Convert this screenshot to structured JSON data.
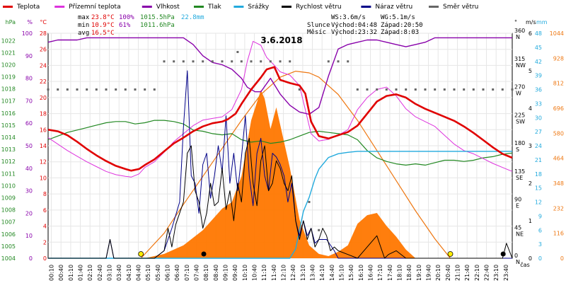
{
  "chart_data": {
    "type": "line",
    "title": "3.6.2018",
    "xlabel": "čas",
    "x_ticks": [
      "00:10",
      "00:40",
      "01:10",
      "01:40",
      "02:10",
      "02:40",
      "03:10",
      "03:40",
      "04:10",
      "04:40",
      "05:10",
      "05:40",
      "06:10",
      "06:40",
      "07:10",
      "07:40",
      "08:10",
      "08:40",
      "09:10",
      "09:40",
      "10:10",
      "10:40",
      "11:10",
      "11:40",
      "12:10",
      "12:40",
      "13:10",
      "13:40",
      "14:10",
      "14:40",
      "15:10",
      "15:40",
      "16:10",
      "16:40",
      "17:10",
      "17:40",
      "18:10",
      "18:40",
      "19:10",
      "19:40",
      "20:10",
      "20:40",
      "21:10",
      "21:40",
      "22:10",
      "22:40",
      "23:10",
      "23:40"
    ],
    "legend": [
      {
        "name": "Teplota",
        "color": "#e00000"
      },
      {
        "name": "Přízemní teplota",
        "color": "#dd33dd"
      },
      {
        "name": "Vlhkost",
        "color": "#8800aa"
      },
      {
        "name": "Tlak",
        "color": "#228822"
      },
      {
        "name": "Srážky",
        "color": "#22aadd"
      },
      {
        "name": "Rychlost větru",
        "color": "#000000"
      },
      {
        "name": "Náraz větru",
        "color": "#000088"
      },
      {
        "name": "Směr větru",
        "color": "#666666"
      }
    ],
    "stats": {
      "max_label": "max",
      "max_temp": "23.8°C",
      "max_hum": "100%",
      "max_press": "1015.5hPa",
      "max_rain": "22.8mm",
      "min_label": "min",
      "min_temp": "10.9°C",
      "min_hum": "61%",
      "min_press": "1011.6hPa",
      "avg_label": "avg",
      "avg_temp": "16.5°C"
    },
    "wind": {
      "ws": "WS:3.6m/s",
      "wg": "WG:5.1m/s"
    },
    "sun": {
      "label": "Slunce",
      "rise": "Východ:04:48",
      "set": "Západ:20:50"
    },
    "moon": {
      "label": "Měsíc",
      "rise": "Východ:23:32",
      "set": "Západ:8:03"
    },
    "axes": {
      "pressure": {
        "unit": "hPa",
        "ticks": [
          "1004",
          "1005",
          "1006",
          "1007",
          "1008",
          "1009",
          "1010",
          "1011",
          "1012",
          "1013",
          "1014",
          "1015",
          "1016",
          "1017",
          "1018",
          "1019",
          "1020",
          "1021",
          "1022"
        ],
        "range": [
          1004,
          1022.6
        ]
      },
      "humidity": {
        "unit": "%",
        "ticks": [
          "0",
          "10",
          "20",
          "30",
          "40",
          "50",
          "60",
          "70",
          "80",
          "90",
          "100"
        ],
        "range": [
          0,
          100
        ]
      },
      "temperature": {
        "unit": "°C",
        "ticks": [
          "0",
          "2",
          "4",
          "6",
          "8",
          "10",
          "12",
          "14",
          "16",
          "18",
          "20",
          "22",
          "24",
          "26",
          "28"
        ],
        "range": [
          0,
          28
        ]
      },
      "direction": {
        "unit": "°",
        "ticks": [
          {
            "deg": "0",
            "dir": "N"
          },
          {
            "deg": "45",
            "dir": "NE"
          },
          {
            "deg": "90",
            "dir": "E"
          },
          {
            "deg": "135",
            "dir": "SE"
          },
          {
            "deg": "180",
            "dir": "S"
          },
          {
            "deg": "225",
            "dir": "SW"
          },
          {
            "deg": "270",
            "dir": "W"
          },
          {
            "deg": "315",
            "dir": "NW"
          },
          {
            "deg": "360",
            "dir": "N"
          }
        ],
        "range": [
          0,
          360
        ]
      },
      "wind_speed": {
        "unit": "m/s",
        "ticks": [
          "0",
          "1",
          "2",
          "3",
          "4",
          "5",
          "6"
        ],
        "range": [
          0,
          6
        ]
      },
      "rain": {
        "unit": "mm",
        "ticks": [
          "0",
          "3",
          "6",
          "9",
          "12",
          "15",
          "18",
          "21",
          "24",
          "27",
          "30",
          "33",
          "36",
          "39",
          "42",
          "45",
          "48"
        ],
        "range": [
          0,
          48
        ]
      },
      "solar": {
        "ticks": [
          "0",
          "116",
          "232",
          "348",
          "464",
          "580",
          "696",
          "812",
          "928",
          "1044"
        ],
        "range": [
          0,
          1044
        ]
      }
    },
    "x_range_hours": [
      0,
      24
    ],
    "series": [
      {
        "name": "Teplota",
        "x": [
          0,
          0.5,
          1,
          1.5,
          2,
          2.5,
          3,
          3.5,
          4,
          4.3,
          4.7,
          5,
          5.5,
          6,
          6.5,
          7,
          7.5,
          8,
          8.5,
          9,
          9.3,
          9.7,
          10,
          10.5,
          11,
          11.3,
          11.7,
          12,
          12.5,
          13,
          13.3,
          13.6,
          14,
          14.5,
          15,
          15.5,
          16,
          16.5,
          17,
          17.5,
          18,
          18.5,
          19,
          19.5,
          20,
          20.5,
          21,
          21.5,
          22,
          22.5,
          23,
          23.5,
          24
        ],
        "values": [
          16.0,
          15.8,
          15.3,
          14.5,
          13.6,
          12.8,
          12.1,
          11.5,
          11.1,
          10.9,
          11.1,
          11.6,
          12.3,
          13.3,
          14.3,
          15.0,
          15.8,
          16.4,
          16.8,
          17.0,
          17.3,
          18.0,
          19.2,
          21.0,
          22.5,
          23.5,
          23.8,
          22.2,
          21.8,
          21.5,
          20.5,
          17.0,
          15.2,
          14.9,
          15.3,
          15.7,
          16.5,
          18.0,
          19.5,
          20.2,
          20.4,
          20.0,
          19.2,
          18.6,
          18.1,
          17.6,
          17.1,
          16.4,
          15.6,
          14.7,
          13.8,
          13.0,
          12.5
        ]
      },
      {
        "name": "Přízemní teplota",
        "x": [
          0,
          0.5,
          1,
          1.5,
          2,
          2.5,
          3,
          3.5,
          4,
          4.3,
          4.7,
          5,
          5.5,
          6,
          6.5,
          7,
          7.5,
          8,
          8.5,
          9,
          9.5,
          10,
          10.3,
          10.6,
          11,
          11.3,
          11.7,
          12,
          12.5,
          13,
          13.3,
          13.6,
          14,
          14.5,
          15,
          15.5,
          16,
          16.5,
          17,
          17.5,
          18,
          18.5,
          19,
          19.5,
          20,
          20.5,
          21,
          21.5,
          22,
          22.5,
          23,
          23.5,
          24
        ],
        "values": [
          15.0,
          14.2,
          13.4,
          12.7,
          12.0,
          11.4,
          10.8,
          10.4,
          10.2,
          10.1,
          10.5,
          11.3,
          12.0,
          13.2,
          14.5,
          15.5,
          16.5,
          17.2,
          17.4,
          17.6,
          18.5,
          21.0,
          24.5,
          27.0,
          26.5,
          25.0,
          24.0,
          23.2,
          22.8,
          21.5,
          18.5,
          15.5,
          14.6,
          14.8,
          15.3,
          16.0,
          18.5,
          20.0,
          21.0,
          21.3,
          20.2,
          18.6,
          17.6,
          17.0,
          16.4,
          15.3,
          14.2,
          13.4,
          13.0,
          12.4,
          11.8,
          11.3,
          10.8
        ]
      },
      {
        "name": "Vlhkost",
        "x": [
          0,
          0.5,
          1,
          1.5,
          2,
          2.5,
          3,
          3.5,
          4,
          4.5,
          5,
          5.5,
          6,
          6.5,
          7,
          7.5,
          8,
          8.5,
          9,
          9.5,
          10,
          10.3,
          10.7,
          11,
          11.5,
          12,
          12.5,
          13,
          13.5,
          14,
          14.5,
          15,
          15.5,
          16,
          16.5,
          17,
          17.5,
          18,
          18.5,
          19,
          19.5,
          20,
          20.5,
          21,
          21.5,
          22,
          22.5,
          23,
          23.5,
          24
        ],
        "values": [
          96,
          97,
          97,
          97,
          98,
          98,
          98,
          98,
          98,
          98,
          98,
          98,
          98,
          98,
          98,
          95,
          90,
          87,
          86,
          84,
          80,
          76,
          74,
          74,
          80,
          73,
          68,
          65,
          64,
          67,
          81,
          93,
          95,
          96,
          97,
          97,
          96,
          95,
          94,
          95,
          96,
          98,
          98,
          98,
          98,
          98,
          98,
          98,
          98,
          98
        ]
      },
      {
        "name": "Tlak",
        "x": [
          0,
          0.5,
          1,
          1.5,
          2,
          2.5,
          3,
          3.5,
          4,
          4.5,
          5,
          5.5,
          6,
          6.5,
          7,
          7.5,
          8,
          8.5,
          9,
          9.5,
          10,
          10.5,
          11,
          11.5,
          12,
          12.5,
          13,
          13.5,
          14,
          14.5,
          15,
          15.5,
          16,
          16.5,
          17,
          17.5,
          18,
          18.5,
          19,
          19.5,
          20,
          20.5,
          21,
          21.5,
          22,
          22.5,
          23,
          23.5,
          24
        ],
        "values": [
          1013.8,
          1014.1,
          1014.4,
          1014.6,
          1014.8,
          1015.0,
          1015.2,
          1015.3,
          1015.3,
          1015.1,
          1015.2,
          1015.4,
          1015.4,
          1015.3,
          1015.1,
          1014.6,
          1014.5,
          1014.3,
          1014.2,
          1014.3,
          1013.8,
          1013.6,
          1013.7,
          1013.5,
          1013.6,
          1013.8,
          1014.1,
          1014.4,
          1014.5,
          1014.4,
          1014.3,
          1014.2,
          1013.8,
          1012.9,
          1012.3,
          1012.0,
          1011.8,
          1011.7,
          1011.8,
          1011.7,
          1011.9,
          1012.1,
          1012.1,
          1012.0,
          1012.1,
          1012.3,
          1012.4,
          1012.6,
          1012.7
        ]
      },
      {
        "name": "Srážky",
        "x": [
          0,
          12.5,
          12.8,
          13.0,
          13.2,
          13.5,
          13.8,
          14.0,
          14.5,
          15.0,
          15.5,
          16.0,
          24
        ],
        "values": [
          0,
          0,
          2,
          6,
          10,
          13,
          17,
          19,
          21.5,
          22.3,
          22.6,
          22.8,
          22.8
        ]
      },
      {
        "name": "Rychlost větru",
        "x": [
          0,
          2.5,
          3.0,
          3.2,
          3.4,
          5.5,
          6.0,
          6.2,
          6.4,
          6.6,
          7.0,
          7.2,
          7.4,
          7.6,
          7.8,
          8.0,
          8.2,
          8.4,
          8.6,
          8.8,
          9.0,
          9.2,
          9.4,
          9.6,
          9.8,
          10.0,
          10.2,
          10.4,
          10.6,
          10.8,
          11.0,
          11.2,
          11.4,
          11.6,
          11.8,
          12.0,
          12.2,
          12.4,
          12.6,
          12.8,
          13.0,
          13.2,
          13.4,
          13.6,
          13.8,
          14.0,
          14.2,
          14.4,
          14.6,
          14.8,
          15.0,
          15.5,
          16.0,
          16.5,
          17.0,
          17.2,
          17.4,
          17.6,
          18.0,
          18.5,
          19,
          23.5,
          23.7,
          24
        ],
        "values": [
          0,
          0,
          0,
          0.5,
          0,
          0,
          0.2,
          0.8,
          0.3,
          0.9,
          1.5,
          2.8,
          3.0,
          1.8,
          1.5,
          0.8,
          1.2,
          2.0,
          1.4,
          1.5,
          2.4,
          1.3,
          1.8,
          1.0,
          2.0,
          1.5,
          2.8,
          3.2,
          2.0,
          1.4,
          2.6,
          3.0,
          1.8,
          2.0,
          2.6,
          2.4,
          2.0,
          1.8,
          2.2,
          1.0,
          0.5,
          1.0,
          0.5,
          0.8,
          0.3,
          0.5,
          0.8,
          0.6,
          0.2,
          0.3,
          0.2,
          0.1,
          0,
          0.3,
          0.6,
          0.3,
          0,
          0.1,
          0.2,
          0,
          0,
          0,
          0.4,
          0
        ]
      },
      {
        "name": "Náraz větru",
        "x": [
          0,
          2.5,
          3.0,
          3.2,
          3.4,
          5.5,
          6.0,
          6.4,
          6.8,
          7.0,
          7.2,
          7.4,
          7.6,
          7.8,
          8.0,
          8.2,
          8.4,
          8.6,
          8.8,
          9.0,
          9.2,
          9.4,
          9.6,
          9.8,
          10.0,
          10.2,
          10.4,
          10.6,
          10.8,
          11.0,
          11.2,
          11.4,
          11.6,
          11.8,
          12.0,
          12.2,
          12.4,
          12.6,
          12.8,
          13.0,
          13.2,
          13.4,
          13.6,
          13.8,
          14.0,
          14.4,
          14.8,
          15,
          24
        ],
        "values": [
          0,
          0,
          0,
          0.5,
          0,
          0,
          0.2,
          0.8,
          1.5,
          3.5,
          5.0,
          2.2,
          2.0,
          1.2,
          2.5,
          2.8,
          1.6,
          2.2,
          3.0,
          2.3,
          3.8,
          2.0,
          2.8,
          1.8,
          2.7,
          3.8,
          2.2,
          1.4,
          2.8,
          3.2,
          2.2,
          1.8,
          2.8,
          2.7,
          2.5,
          2.2,
          1.5,
          2.0,
          1.0,
          0.6,
          1.0,
          0.6,
          0.8,
          0.4,
          0.5,
          0.5,
          0.2,
          0,
          0
        ]
      },
      {
        "name": "Slunce",
        "x": [
          4.8,
          6,
          7,
          8,
          9,
          10,
          11,
          12,
          12.8,
          13.5,
          14,
          15,
          16,
          17,
          18,
          19,
          20,
          20.8
        ],
        "values": [
          0,
          116,
          250,
          380,
          510,
          640,
          760,
          840,
          868,
          860,
          840,
          760,
          640,
          500,
          360,
          220,
          90,
          0
        ]
      },
      {
        "name": "Záření",
        "x": [
          5,
          6,
          7,
          8,
          9,
          9.5,
          10,
          10.5,
          11,
          11.2,
          11.5,
          11.8,
          12,
          12.5,
          13,
          13.5,
          14,
          14.5,
          15,
          15.5,
          16,
          16.5,
          17,
          17.5,
          18,
          18.5,
          19
        ],
        "values": [
          0,
          20,
          60,
          130,
          230,
          260,
          380,
          640,
          780,
          740,
          600,
          700,
          620,
          420,
          180,
          60,
          20,
          10,
          30,
          60,
          160,
          200,
          210,
          150,
          100,
          40,
          0
        ]
      }
    ],
    "wind_direction": {
      "x": [
        0,
        0.5,
        1,
        1.5,
        2,
        2.5,
        3,
        3.5,
        4,
        4.5,
        5,
        5.5,
        6,
        6.5,
        7,
        7.5,
        8,
        8.5,
        9,
        9.5,
        9.8,
        10,
        10.5,
        11,
        11.5,
        12,
        12.5,
        13,
        13.5,
        14,
        14.5,
        15,
        15.5,
        16,
        16.5,
        17,
        17.5,
        18,
        18.5,
        19,
        19.5,
        20,
        20.5,
        21,
        21.5,
        22,
        22.5,
        23,
        23.5,
        24
      ],
      "values": [
        270,
        270,
        270,
        270,
        270,
        270,
        270,
        270,
        270,
        270,
        270,
        270,
        315,
        315,
        315,
        315,
        315,
        315,
        315,
        315,
        330,
        315,
        315,
        315,
        315,
        315,
        315,
        270,
        90,
        45,
        315,
        315,
        315,
        270,
        270,
        270,
        270,
        270,
        270,
        270,
        270,
        270,
        270,
        270,
        270,
        270,
        270,
        270,
        270,
        270
      ]
    },
    "markers": {
      "sunrise_h": 4.8,
      "sunset_h": 20.8,
      "moonset_h": 8.05,
      "moonrise_h": 23.53
    }
  }
}
